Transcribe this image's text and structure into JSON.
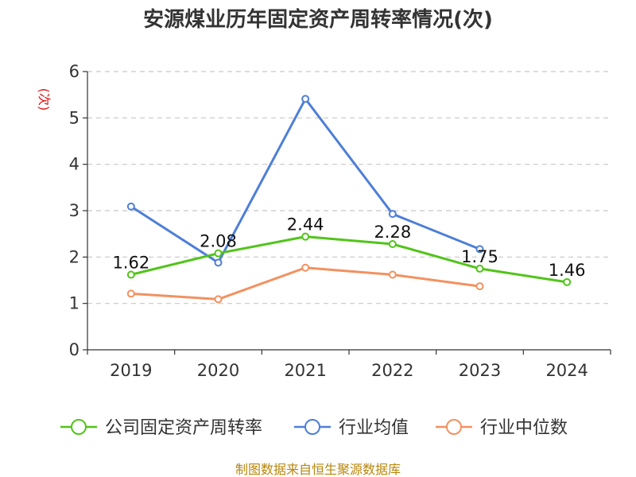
{
  "chart_data": {
    "type": "line",
    "title": "安源煤业历年固定资产周转率情况(次)",
    "ylabel": "(次)",
    "ylim": [
      0,
      6
    ],
    "yticks": [
      0,
      1,
      2,
      3,
      4,
      5,
      6
    ],
    "grid": true,
    "legend_position": "bottom",
    "categories": [
      "2019",
      "2020",
      "2021",
      "2022",
      "2023",
      "2024"
    ],
    "series": [
      {
        "name": "公司固定资产周转率",
        "color": "#52c41a",
        "values": [
          1.62,
          2.08,
          2.44,
          2.28,
          1.75,
          1.46
        ],
        "labels": [
          "1.62",
          "2.08",
          "2.44",
          "2.28",
          "1.75",
          "1.46"
        ]
      },
      {
        "name": "行业均值",
        "color": "#4e7fd8",
        "values": [
          3.09,
          1.88,
          5.41,
          2.93,
          2.17,
          null
        ]
      },
      {
        "name": "行业中位数",
        "color": "#f39160",
        "values": [
          1.21,
          1.09,
          1.77,
          1.62,
          1.37,
          null
        ]
      }
    ],
    "source": "制图数据来自恒生聚源数据库"
  }
}
